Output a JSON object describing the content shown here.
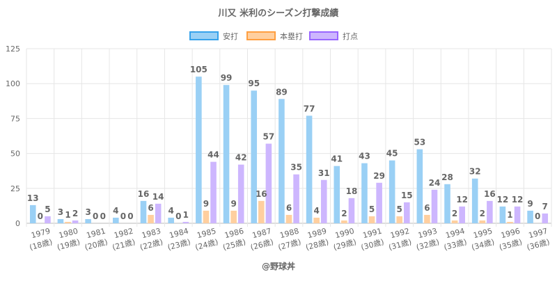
{
  "chart_data": {
    "type": "bar",
    "title": "川又 米利のシーズン打撃成績",
    "categories": [
      "1979",
      "1980",
      "1981",
      "1982",
      "1983",
      "1984",
      "1985",
      "1986",
      "1987",
      "1988",
      "1989",
      "1990",
      "1991",
      "1992",
      "1993",
      "1994",
      "1995",
      "1996",
      "1997"
    ],
    "sublabels": [
      "(18歳)",
      "(19歳)",
      "(20歳)",
      "(21歳)",
      "(22歳)",
      "(23歳)",
      "(24歳)",
      "(25歳)",
      "(26歳)",
      "(27歳)",
      "(28歳)",
      "(29歳)",
      "(30歳)",
      "(31歳)",
      "(32歳)",
      "(33歳)",
      "(34歳)",
      "(35歳)",
      "(36歳)"
    ],
    "series": [
      {
        "name": "安打",
        "color": "#9ad0f5",
        "border": "#36a2eb",
        "values": [
          13,
          3,
          3,
          4,
          16,
          4,
          105,
          99,
          95,
          89,
          77,
          41,
          43,
          45,
          53,
          28,
          32,
          12,
          9
        ]
      },
      {
        "name": "本塁打",
        "color": "#ffcf9f",
        "border": "#ff9f40",
        "values": [
          0,
          1,
          0,
          0,
          6,
          0,
          9,
          9,
          16,
          6,
          4,
          2,
          5,
          5,
          6,
          2,
          2,
          1,
          0
        ]
      },
      {
        "name": "打点",
        "color": "#cdb6fe",
        "border": "#9966ff",
        "values": [
          5,
          2,
          0,
          0,
          14,
          1,
          44,
          42,
          57,
          35,
          31,
          18,
          29,
          15,
          24,
          12,
          16,
          12,
          7
        ]
      }
    ],
    "ylim": [
      0,
      125
    ],
    "yticks": [
      0,
      25,
      50,
      75,
      100,
      125
    ],
    "grid": true,
    "legend": "top",
    "xlabel": "",
    "ylabel": ""
  },
  "footer": "@野球丼"
}
